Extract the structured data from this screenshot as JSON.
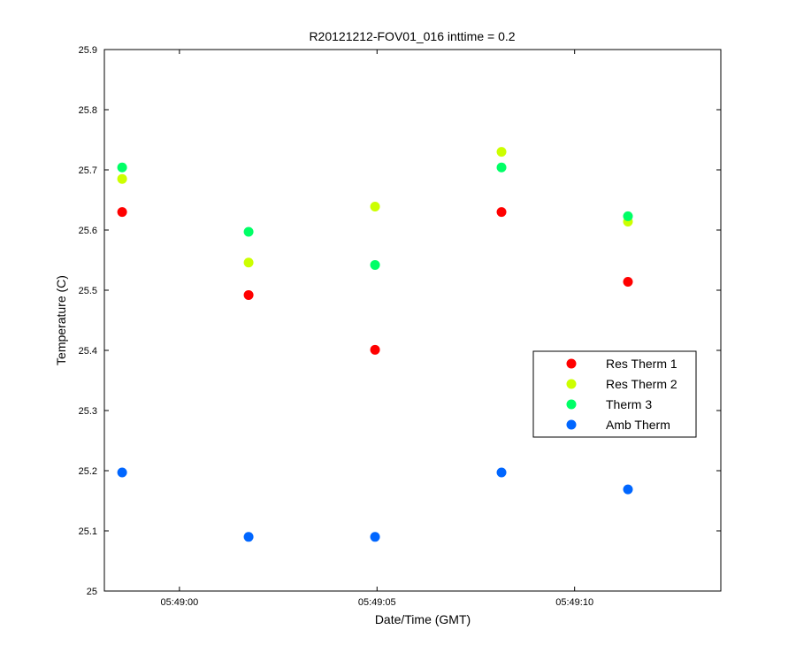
{
  "chart_data": {
    "type": "scatter",
    "title": "R20121212-FOV01_016 inttime = 0.2",
    "xlabel": "Date/Time (GMT)",
    "ylabel": "Temperature (C)",
    "x_unit": "seconds past 05:49:00",
    "xlim": [
      -1.9,
      13.7
    ],
    "ylim": [
      25.0,
      25.9
    ],
    "yticks": [
      "25",
      "25.1",
      "25.2",
      "25.3",
      "25.4",
      "25.5",
      "25.6",
      "25.7",
      "25.8",
      "25.9"
    ],
    "ytick_values": [
      25.0,
      25.1,
      25.2,
      25.3,
      25.4,
      25.5,
      25.6,
      25.7,
      25.8,
      25.9
    ],
    "xticks": [
      "05:49:00",
      "05:49:05",
      "05:49:10"
    ],
    "xtick_values": [
      0,
      5,
      10
    ],
    "grid": false,
    "legend_position": "right, lower-middle",
    "x": [
      -1.45,
      1.75,
      4.95,
      8.15,
      11.35
    ],
    "series": [
      {
        "name": "Res Therm 1",
        "color": "#ff0000",
        "values": [
          25.63,
          25.492,
          25.401,
          25.63,
          25.514
        ]
      },
      {
        "name": "Res Therm 2",
        "color": "#ccff00",
        "values": [
          25.685,
          25.546,
          25.639,
          25.73,
          25.614
        ]
      },
      {
        "name": "Therm 3",
        "color": "#00ff66",
        "values": [
          25.704,
          25.597,
          25.542,
          25.704,
          25.623
        ]
      },
      {
        "name": "Amb Therm",
        "color": "#0066ff",
        "values": [
          25.197,
          25.09,
          25.09,
          25.197,
          25.169
        ]
      }
    ]
  }
}
